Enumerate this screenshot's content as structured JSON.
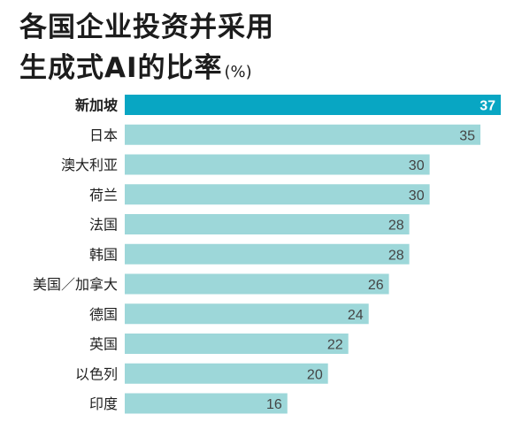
{
  "title_line1": "各国企业投资并采用",
  "title_line2": "生成式AI的比率",
  "title_unit": "(%)",
  "colors": {
    "highlight_bar": "#08a6c3",
    "bar": "#9dd7d9"
  },
  "chart_data": {
    "type": "bar",
    "orientation": "horizontal",
    "title": "各国企业投资并采用生成式AI的比率 (%)",
    "categories": [
      "新加坡",
      "日本",
      "澳大利亚",
      "荷兰",
      "法国",
      "韩国",
      "美国／加拿大",
      "德国",
      "英国",
      "以色列",
      "印度"
    ],
    "values": [
      37,
      35,
      30,
      30,
      28,
      28,
      26,
      24,
      22,
      20,
      16
    ],
    "highlight": "新加坡",
    "xlim": [
      0,
      37
    ],
    "grid": false,
    "legend": false
  }
}
